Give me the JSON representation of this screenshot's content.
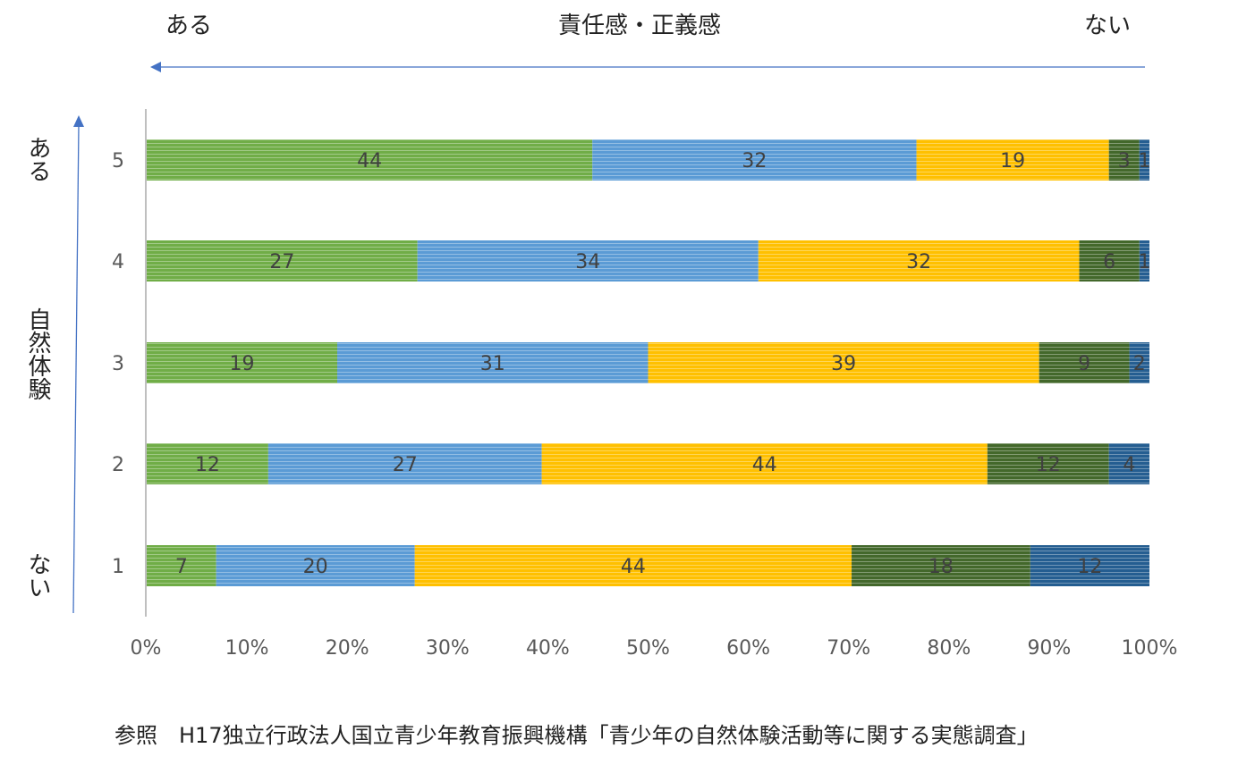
{
  "header": {
    "left_label": "ある",
    "center_label": "責任感・正義感",
    "right_label": "ない"
  },
  "side": {
    "top_label": "ある",
    "middle_label": "自然体験",
    "bottom_label": "ない"
  },
  "footer": {
    "source": "参照　H17独立行政法人国立青少年教育振興機構「青少年の自然体験活動等に関する実態調査」"
  },
  "colors": {
    "s1": "#70ad47",
    "s2": "#5b9bd5",
    "s3": "#ffc000",
    "s4": "#43682b",
    "s5": "#255e91",
    "arrow": "#4472c4"
  },
  "chart_data": {
    "type": "bar",
    "orientation": "horizontal",
    "stacked": "percent",
    "categories": [
      "5",
      "4",
      "3",
      "2",
      "1"
    ],
    "series": [
      {
        "values": [
          44,
          27,
          19,
          12,
          7
        ]
      },
      {
        "values": [
          32,
          34,
          31,
          27,
          20
        ]
      },
      {
        "values": [
          19,
          32,
          39,
          44,
          44
        ]
      },
      {
        "values": [
          3,
          6,
          9,
          12,
          18
        ]
      },
      {
        "values": [
          1,
          1,
          2,
          4,
          12
        ]
      }
    ],
    "xticks": [
      "0%",
      "10%",
      "20%",
      "30%",
      "40%",
      "50%",
      "60%",
      "70%",
      "80%",
      "90%",
      "100%"
    ],
    "xlim": [
      0,
      100
    ],
    "grid": false,
    "legend": "none"
  }
}
